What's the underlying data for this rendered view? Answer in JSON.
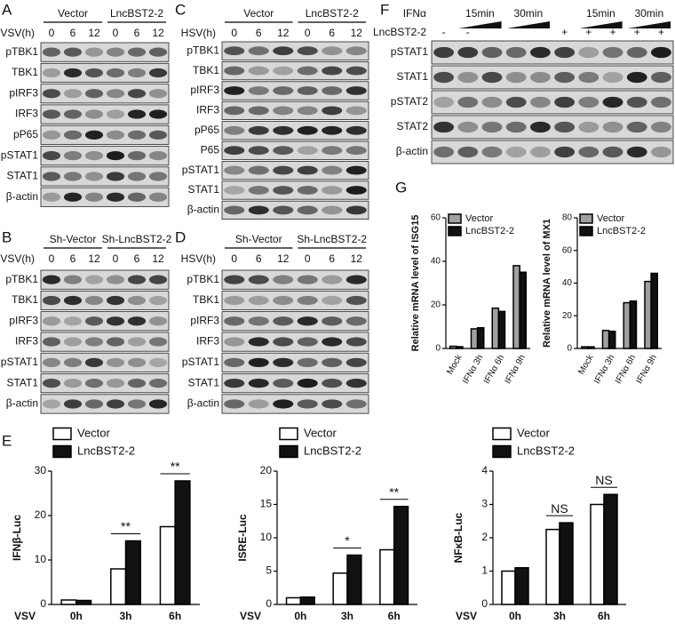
{
  "blots": [
    {
      "letter": "A",
      "groups": [
        "Vector",
        "LncBST2-2"
      ],
      "lane_row_label": "VSV(h)",
      "lanes": [
        "0",
        "6",
        "12",
        "0",
        "6",
        "12"
      ],
      "rows": [
        "pTBK1",
        "TBK1",
        "pIRF3",
        "IRF3",
        "pP65",
        "pSTAT1",
        "STAT1",
        "β-actin"
      ]
    },
    {
      "letter": "C",
      "groups": [
        "Vector",
        "LncBST2-2"
      ],
      "lane_row_label": "HSV(h)",
      "lanes": [
        "0",
        "6",
        "12",
        "0",
        "6",
        "12"
      ],
      "rows": [
        "pTBK1",
        "TBK1",
        "pIRF3",
        "IRF3",
        "pP65",
        "P65",
        "pSTAT1",
        "STAT1",
        "β-actin"
      ]
    },
    {
      "letter": "B",
      "groups": [
        "Sh-Vector",
        "Sh-LncBST2-2"
      ],
      "lane_row_label": "VSV(h)",
      "lanes": [
        "0",
        "6",
        "12",
        "0",
        "6",
        "12"
      ],
      "rows": [
        "pTBK1",
        "TBK1",
        "pIRF3",
        "IRF3",
        "pSTAT1",
        "STAT1",
        "β-actin"
      ]
    },
    {
      "letter": "D",
      "groups": [
        "Sh-Vector",
        "Sh-LncBST2-2"
      ],
      "lane_row_label": "HSV(h)",
      "lanes": [
        "0",
        "6",
        "12",
        "0",
        "6",
        "12"
      ],
      "rows": [
        "pTBK1",
        "TBK1",
        "pIRF3",
        "IRF3",
        "pSTAT1",
        "STAT1",
        "β-actin"
      ]
    },
    {
      "letter": "F",
      "group_row_label": "IFNα",
      "groups": [
        "15min",
        "30min",
        "15min",
        "30min"
      ],
      "lane_row_label": "LncBST2-2",
      "lanes": [
        "-",
        "-",
        "",
        "",
        "",
        "+",
        "+",
        "+",
        "+",
        "+"
      ],
      "rows": [
        "pSTAT1",
        "STAT1",
        "pSTAT2",
        "STAT2",
        "β-actin"
      ]
    }
  ],
  "chart_data": [
    {
      "type": "bar",
      "panel": "E",
      "ylabel": "IFNβ-Luc",
      "xlabel": "VSV",
      "categories": [
        "0h",
        "3h",
        "6h"
      ],
      "edgecolor": "#000000",
      "series": [
        {
          "name": "Vector",
          "color": "#ffffff",
          "values": [
            1,
            8,
            17.5
          ]
        },
        {
          "name": "LncBST2-2",
          "color": "#111111",
          "values": [
            0.9,
            14.3,
            27.8
          ]
        }
      ],
      "ylim": [
        0,
        30
      ],
      "yticks": [
        0,
        10,
        20,
        30
      ],
      "annotations": [
        null,
        "**",
        "**"
      ]
    },
    {
      "type": "bar",
      "ylabel": "ISRE-Luc",
      "xlabel": "VSV",
      "categories": [
        "0h",
        "3h",
        "6h"
      ],
      "edgecolor": "#000000",
      "series": [
        {
          "name": "Vector",
          "color": "#ffffff",
          "values": [
            1,
            4.7,
            8.2
          ]
        },
        {
          "name": "LncBST2-2",
          "color": "#111111",
          "values": [
            1.1,
            7.4,
            14.7
          ]
        }
      ],
      "ylim": [
        0,
        20
      ],
      "yticks": [
        0,
        5,
        10,
        15,
        20
      ],
      "annotations": [
        null,
        "*",
        "**"
      ]
    },
    {
      "type": "bar",
      "ylabel": "NFκB-Luc",
      "xlabel": "VSV",
      "categories": [
        "0h",
        "3h",
        "6h"
      ],
      "edgecolor": "#000000",
      "series": [
        {
          "name": "Vector",
          "color": "#ffffff",
          "values": [
            1,
            2.25,
            3
          ]
        },
        {
          "name": "LncBST2-2",
          "color": "#111111",
          "values": [
            1.1,
            2.45,
            3.3
          ]
        }
      ],
      "ylim": [
        0,
        4
      ],
      "yticks": [
        0,
        1,
        2,
        3,
        4
      ],
      "annotations": [
        null,
        "NS",
        "NS"
      ]
    },
    {
      "type": "bar",
      "panel": "G",
      "ylabel": "Relative mRNA level of  ISG15",
      "categories": [
        "Mock",
        "IFNα 3h",
        "IFNα 6h",
        "IFNα 9h"
      ],
      "edgecolor": "#000000",
      "series": [
        {
          "name": "Vector",
          "color": "#a0a0a0",
          "values": [
            1,
            9,
            18.5,
            38
          ]
        },
        {
          "name": "LncBST2-2",
          "color": "#111111",
          "values": [
            0.8,
            9.5,
            17,
            35
          ]
        }
      ],
      "ylim": [
        0,
        60
      ],
      "yticks": [
        0,
        20,
        40,
        60
      ]
    },
    {
      "type": "bar",
      "ylabel": "Relative mRNA level of  MX1",
      "categories": [
        "Mock",
        "IFNα 3h",
        "IFNα 6h",
        "IFNα 9h"
      ],
      "edgecolor": "#000000",
      "series": [
        {
          "name": "Vector",
          "color": "#a0a0a0",
          "values": [
            1,
            11,
            28,
            41
          ]
        },
        {
          "name": "LncBST2-2",
          "color": "#111111",
          "values": [
            1,
            10.5,
            29,
            46
          ]
        }
      ],
      "ylim": [
        0,
        80
      ],
      "yticks": [
        0,
        20,
        40,
        60,
        80
      ]
    }
  ]
}
